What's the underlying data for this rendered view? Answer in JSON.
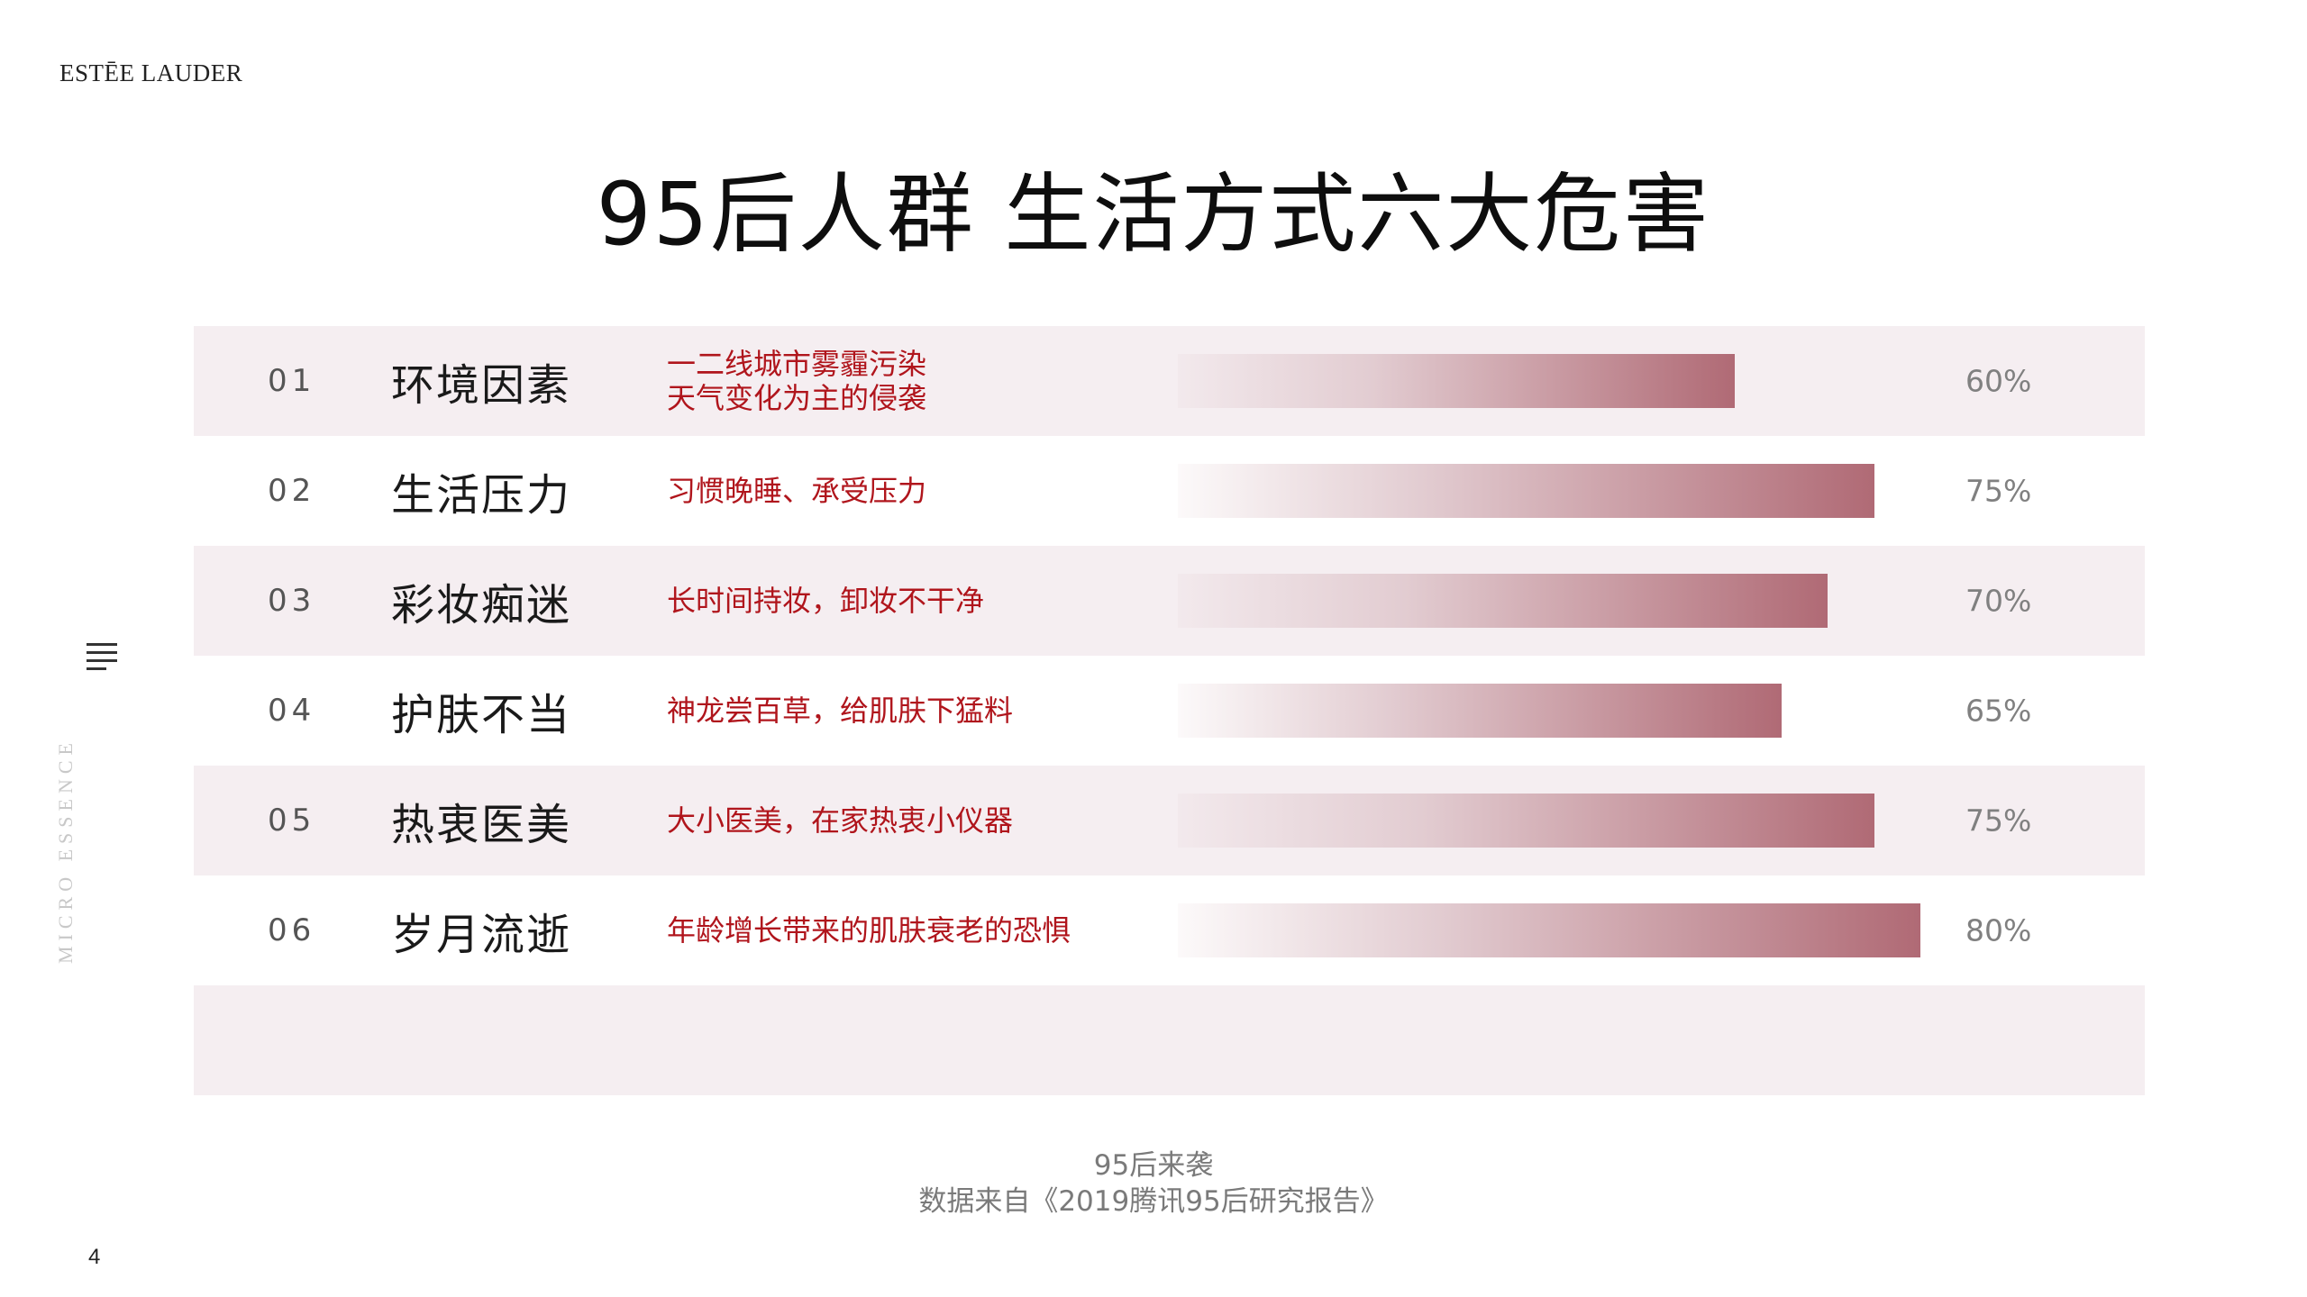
{
  "brand": "ESTĒE LAUDER",
  "title": "95后人群 生活方式六大危害",
  "side_text": "MICRO ESSENCE",
  "page_number": "4",
  "menu_icon": "menu-lines-icon",
  "colors": {
    "row_shade": "#f5eef1",
    "bar_end": "#b06a75",
    "description": "#b0151c"
  },
  "chart_data": {
    "type": "bar",
    "orientation": "horizontal",
    "categories": [
      "环境因素",
      "生活压力",
      "彩妆痴迷",
      "护肤不当",
      "热衷医美",
      "岁月流逝"
    ],
    "values": [
      60,
      75,
      70,
      65,
      75,
      80
    ],
    "value_labels": [
      "60%",
      "75%",
      "70%",
      "65%",
      "75%",
      "80%"
    ],
    "unit": "%"
  },
  "rows": [
    {
      "num": "01",
      "label": "环境因素",
      "desc": [
        "一二线城市雾霾污染",
        "天气变化为主的侵袭"
      ],
      "pct": "60%"
    },
    {
      "num": "02",
      "label": "生活压力",
      "desc": [
        "习惯晚睡、承受压力"
      ],
      "pct": "75%"
    },
    {
      "num": "03",
      "label": "彩妆痴迷",
      "desc": [
        "长时间持妆，卸妆不干净"
      ],
      "pct": "70%"
    },
    {
      "num": "04",
      "label": "护肤不当",
      "desc": [
        "神龙尝百草，给肌肤下猛料"
      ],
      "pct": "65%"
    },
    {
      "num": "05",
      "label": "热衷医美",
      "desc": [
        "大小医美，在家热衷小仪器"
      ],
      "pct": "75%"
    },
    {
      "num": "06",
      "label": "岁月流逝",
      "desc": [
        "年龄增长带来的肌肤衰老的恐惧"
      ],
      "pct": "80%"
    }
  ],
  "footer": {
    "line1": "95后来袭",
    "line2": "数据来自《2019腾讯95后研究报告》"
  }
}
